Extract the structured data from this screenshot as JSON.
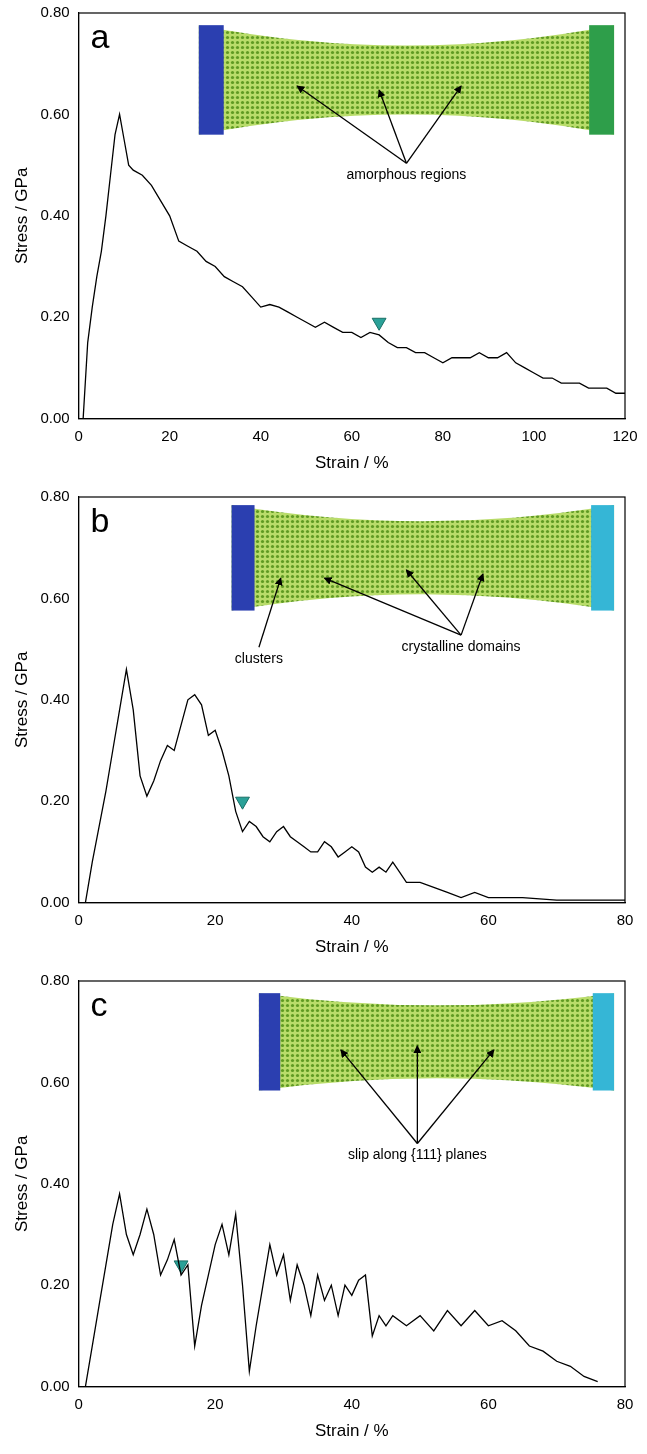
{
  "chart_data": [
    {
      "type": "line",
      "panel": "a",
      "xlabel": "Strain / %",
      "ylabel": "Stress / GPa",
      "xlim": [
        0,
        120
      ],
      "xticks": [
        0,
        20,
        40,
        60,
        80,
        100,
        120
      ],
      "ylim": [
        0,
        0.8
      ],
      "yticks": [
        {
          "value": 0,
          "label": "0.00"
        },
        {
          "value": 0.2,
          "label": "0.20"
        },
        {
          "value": 0.4,
          "label": "0.40"
        },
        {
          "value": 0.6,
          "label": "0.60"
        },
        {
          "value": 0.8,
          "label": "0.80"
        }
      ],
      "grid": false,
      "annotations": [
        "amorphous regions"
      ],
      "series": [
        {
          "type": "line",
          "color": "#000000",
          "line_style": "solid",
          "x": [
            1,
            2,
            3,
            4,
            5,
            6,
            7,
            8,
            9,
            10,
            11,
            12,
            14,
            16,
            18,
            20,
            22,
            24,
            26,
            28,
            30,
            32,
            34,
            36,
            38,
            40,
            42,
            44,
            46,
            48,
            50,
            52,
            54,
            56,
            58,
            60,
            62,
            64,
            66,
            68,
            70,
            72,
            74,
            76,
            78,
            80,
            82,
            84,
            86,
            88,
            90,
            92,
            94,
            96,
            98,
            100,
            102,
            104,
            106,
            108,
            110,
            112,
            114,
            116,
            118,
            120
          ],
          "values": [
            0,
            0.15,
            0.22,
            0.28,
            0.33,
            0.4,
            0.48,
            0.56,
            0.6,
            0.55,
            0.5,
            0.49,
            0.48,
            0.46,
            0.43,
            0.4,
            0.35,
            0.34,
            0.33,
            0.31,
            0.3,
            0.28,
            0.27,
            0.26,
            0.24,
            0.22,
            0.225,
            0.22,
            0.21,
            0.2,
            0.19,
            0.18,
            0.19,
            0.18,
            0.17,
            0.17,
            0.16,
            0.17,
            0.165,
            0.15,
            0.14,
            0.14,
            0.13,
            0.13,
            0.12,
            0.11,
            0.12,
            0.12,
            0.12,
            0.13,
            0.12,
            0.12,
            0.13,
            0.11,
            0.1,
            0.09,
            0.08,
            0.08,
            0.07,
            0.07,
            0.07,
            0.06,
            0.06,
            0.06,
            0.05,
            0.05
          ]
        },
        {
          "type": "scatter",
          "marker": "triangle",
          "color": "#2aa198",
          "x": [
            66
          ],
          "values": [
            0.19
          ]
        }
      ]
    },
    {
      "type": "line",
      "panel": "b",
      "xlabel": "Strain / %",
      "ylabel": "Stress / GPa",
      "xlim": [
        0,
        80
      ],
      "xticks": [
        0,
        20,
        40,
        60,
        80
      ],
      "ylim": [
        0,
        0.8
      ],
      "yticks": [
        {
          "value": 0,
          "label": "0.00"
        },
        {
          "value": 0.2,
          "label": "0.20"
        },
        {
          "value": 0.4,
          "label": "0.40"
        },
        {
          "value": 0.6,
          "label": "0.60"
        },
        {
          "value": 0.8,
          "label": "0.80"
        }
      ],
      "grid": false,
      "annotations": [
        "clusters",
        "crystalline domains"
      ],
      "series": [
        {
          "type": "line",
          "color": "#000000",
          "line_style": "solid",
          "x": [
            1,
            2,
            3,
            4,
            5,
            6,
            7,
            8,
            9,
            10,
            11,
            12,
            13,
            14,
            15,
            16,
            17,
            18,
            19,
            20,
            21,
            22,
            23,
            24,
            25,
            26,
            27,
            28,
            29,
            30,
            31,
            32,
            33,
            34,
            35,
            36,
            37,
            38,
            39,
            40,
            41,
            42,
            43,
            44,
            45,
            46,
            47,
            48,
            50,
            52,
            54,
            56,
            58,
            60,
            65,
            70,
            75,
            80
          ],
          "values": [
            0,
            0.08,
            0.15,
            0.22,
            0.3,
            0.38,
            0.46,
            0.38,
            0.25,
            0.21,
            0.24,
            0.28,
            0.31,
            0.3,
            0.35,
            0.4,
            0.41,
            0.39,
            0.33,
            0.34,
            0.3,
            0.25,
            0.18,
            0.14,
            0.16,
            0.15,
            0.13,
            0.12,
            0.14,
            0.15,
            0.13,
            0.12,
            0.11,
            0.1,
            0.1,
            0.12,
            0.11,
            0.09,
            0.1,
            0.11,
            0.1,
            0.07,
            0.06,
            0.07,
            0.06,
            0.08,
            0.06,
            0.04,
            0.04,
            0.03,
            0.02,
            0.01,
            0.02,
            0.01,
            0.01,
            0.005,
            0.005,
            0.005
          ]
        },
        {
          "type": "scatter",
          "marker": "triangle",
          "color": "#2aa198",
          "x": [
            24
          ],
          "values": [
            0.2
          ]
        }
      ]
    },
    {
      "type": "line",
      "panel": "c",
      "xlabel": "Strain / %",
      "ylabel": "Stress / GPa",
      "xlim": [
        0,
        80
      ],
      "xticks": [
        0,
        20,
        40,
        60,
        80
      ],
      "ylim": [
        0,
        0.8
      ],
      "yticks": [
        {
          "value": 0,
          "label": "0.00"
        },
        {
          "value": 0.2,
          "label": "0.20"
        },
        {
          "value": 0.4,
          "label": "0.40"
        },
        {
          "value": 0.6,
          "label": "0.60"
        },
        {
          "value": 0.8,
          "label": "0.80"
        }
      ],
      "grid": false,
      "annotations": [
        "slip along {111} planes"
      ],
      "series": [
        {
          "type": "line",
          "color": "#000000",
          "line_style": "solid",
          "x": [
            1,
            2,
            3,
            4,
            5,
            6,
            7,
            8,
            9,
            10,
            11,
            12,
            13,
            14,
            15,
            16,
            17,
            18,
            19,
            20,
            21,
            22,
            23,
            24,
            25,
            26,
            27,
            28,
            29,
            30,
            31,
            32,
            33,
            34,
            35,
            36,
            37,
            38,
            39,
            40,
            41,
            42,
            43,
            44,
            45,
            46,
            48,
            50,
            52,
            54,
            56,
            58,
            60,
            62,
            64,
            66,
            68,
            70,
            72,
            74,
            76
          ],
          "values": [
            0,
            0.08,
            0.16,
            0.24,
            0.32,
            0.38,
            0.3,
            0.26,
            0.3,
            0.35,
            0.3,
            0.22,
            0.25,
            0.29,
            0.22,
            0.24,
            0.08,
            0.16,
            0.22,
            0.28,
            0.32,
            0.26,
            0.34,
            0.2,
            0.03,
            0.12,
            0.2,
            0.28,
            0.22,
            0.26,
            0.17,
            0.24,
            0.2,
            0.14,
            0.22,
            0.17,
            0.2,
            0.14,
            0.2,
            0.18,
            0.21,
            0.22,
            0.1,
            0.14,
            0.12,
            0.14,
            0.12,
            0.14,
            0.11,
            0.15,
            0.12,
            0.15,
            0.12,
            0.13,
            0.11,
            0.08,
            0.07,
            0.05,
            0.04,
            0.02,
            0.01
          ]
        },
        {
          "type": "scatter",
          "marker": "triangle",
          "color": "#2aa198",
          "x": [
            15
          ],
          "values": [
            0.24
          ]
        }
      ]
    }
  ]
}
